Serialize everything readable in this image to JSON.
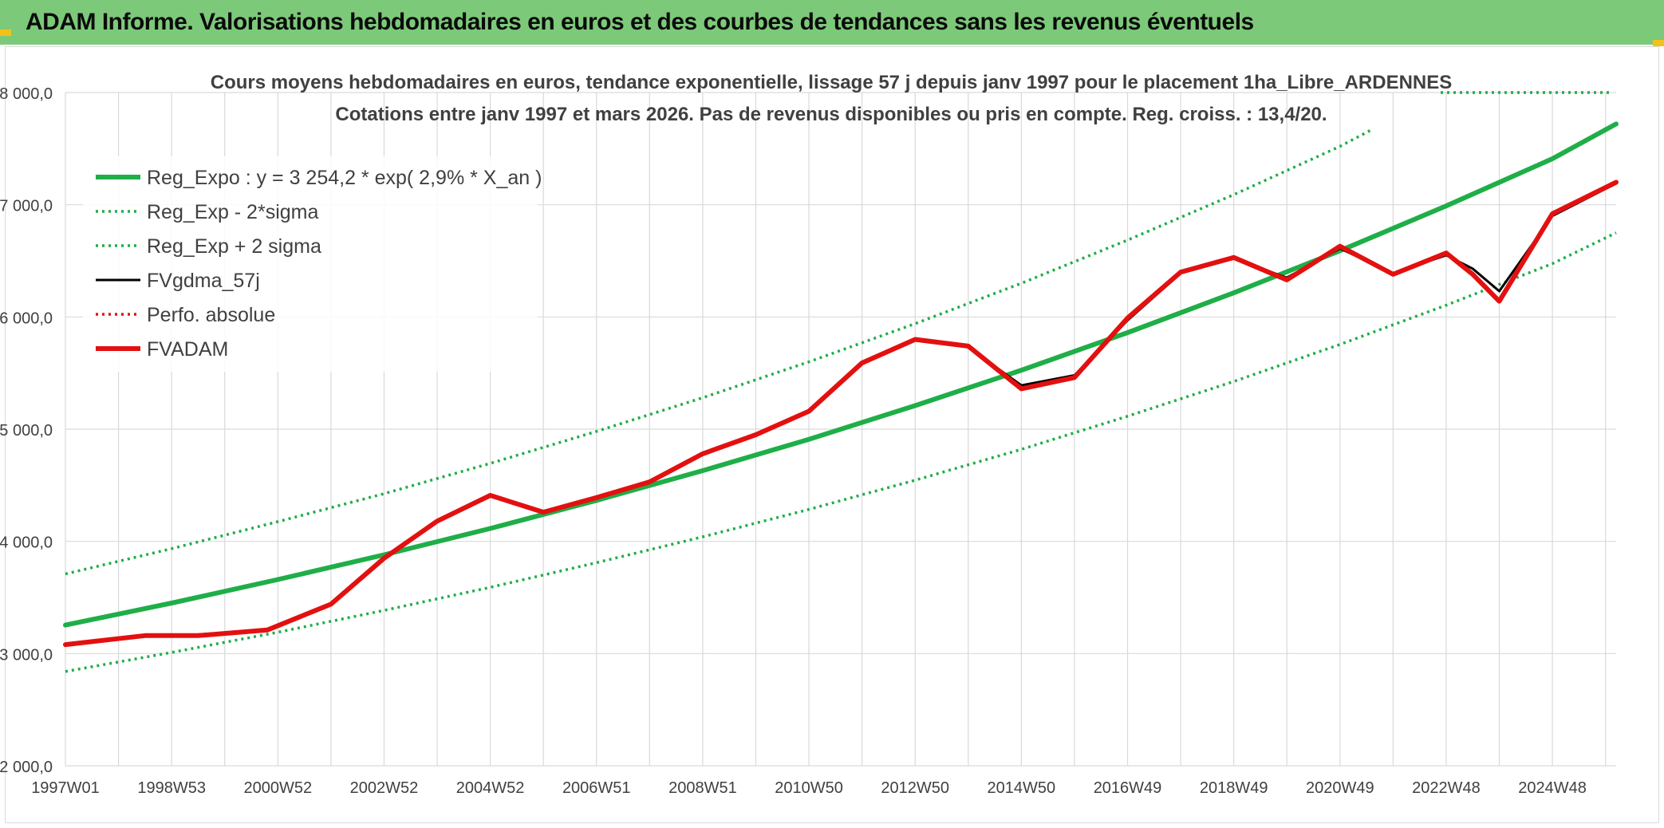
{
  "banner": {
    "title": "ADAM Informe. Valorisations hebdomadaires en euros et des courbes de tendances sans les revenus éventuels"
  },
  "colors": {
    "banner_bg": "#7dc97a",
    "trend": "#1fae48",
    "band": "#1fae48",
    "fvgdma": "#000000",
    "perfo": "#e31010",
    "fvadam": "#e31010",
    "grid": "#d9d9d9",
    "text": "#404040"
  },
  "chart_data": {
    "type": "line",
    "title": "Cours moyens hebdomadaires en euros, tendance exponentielle, lissage 57 j depuis janv 1997 pour le placement 1ha_Libre_ARDENNES",
    "subtitle": "Cotations entre janv 1997 et mars 2026. Pas de revenus disponibles ou pris en compte. Reg. croiss. : 13,4/20.",
    "xlabel": "",
    "ylabel": "",
    "x_range": [
      1997.0,
      2026.2
    ],
    "ylim": [
      2000,
      8000
    ],
    "y_ticks": [
      2000,
      3000,
      4000,
      5000,
      6000,
      7000,
      8000
    ],
    "y_tick_labels": [
      "2 000,0",
      "3 000,0",
      "4 000,0",
      "5 000,0",
      "6 000,0",
      "7 000,0",
      "8 000,0"
    ],
    "x_tick_labels": [
      {
        "label": "1997W01",
        "x": 1997.0
      },
      {
        "label": "1998W53",
        "x": 1999.0
      },
      {
        "label": "2000W52",
        "x": 2001.0
      },
      {
        "label": "2002W52",
        "x": 2003.0
      },
      {
        "label": "2004W52",
        "x": 2005.0
      },
      {
        "label": "2006W51",
        "x": 2007.0
      },
      {
        "label": "2008W51",
        "x": 2009.0
      },
      {
        "label": "2010W50",
        "x": 2011.0
      },
      {
        "label": "2012W50",
        "x": 2013.0
      },
      {
        "label": "2014W50",
        "x": 2015.0
      },
      {
        "label": "2016W49",
        "x": 2017.0
      },
      {
        "label": "2018W49",
        "x": 2019.0
      },
      {
        "label": "2020W49",
        "x": 2021.0
      },
      {
        "label": "2022W48",
        "x": 2023.0
      },
      {
        "label": "2024W48",
        "x": 2025.0
      }
    ],
    "grid": true,
    "legend_position": "top-left",
    "series": [
      {
        "name": "Reg_Expo : y = 3 254,2 * exp( 2,9% * X_an )",
        "style": "solid-thick",
        "color": "#1fae48",
        "x": [
          1997,
          1999,
          2001,
          2003,
          2005,
          2007,
          2009,
          2011,
          2013,
          2015,
          2017,
          2019,
          2021,
          2023,
          2025,
          2026.2
        ],
        "y": [
          3254,
          3450,
          3660,
          3880,
          4115,
          4365,
          4630,
          4910,
          5210,
          5525,
          5860,
          6215,
          6590,
          6990,
          7410,
          7720
        ]
      },
      {
        "name": "Reg_Exp - 2*sigma",
        "style": "dotted",
        "color": "#1fae48",
        "x": [
          1997,
          1999,
          2001,
          2003,
          2005,
          2007,
          2009,
          2011,
          2013,
          2015,
          2017,
          2019,
          2021,
          2023,
          2025,
          2026.2
        ],
        "y": [
          2840,
          3010,
          3190,
          3385,
          3590,
          3810,
          4040,
          4285,
          4545,
          4820,
          5115,
          5425,
          5755,
          6105,
          6475,
          6750
        ]
      },
      {
        "name": "Reg_Exp + 2 sigma",
        "style": "dotted",
        "color": "#1fae48",
        "x": [
          1997,
          1999,
          2001,
          2003,
          2005,
          2007,
          2009,
          2011,
          2013,
          2015,
          2017,
          2019,
          2021,
          2021.6
        ],
        "y": [
          3710,
          3935,
          4175,
          4425,
          4695,
          4980,
          5280,
          5600,
          5940,
          6300,
          6685,
          7090,
          7520,
          7670
        ]
      },
      {
        "name": "FVgdma_57j",
        "style": "solid",
        "color": "#000000",
        "x": [
          1997,
          1998.5,
          1999.5,
          2000.8,
          2002,
          2003,
          2004,
          2005,
          2006,
          2007,
          2008,
          2009,
          2010,
          2011,
          2012,
          2013,
          2014,
          2015,
          2016,
          2017,
          2018,
          2019,
          2020,
          2021,
          2022,
          2023,
          2023.5,
          2024,
          2025,
          2026.2
        ],
        "y": [
          3080,
          3160,
          3170,
          3210,
          3440,
          3840,
          4190,
          4400,
          4270,
          4390,
          4540,
          4790,
          4960,
          5150,
          5600,
          5790,
          5730,
          5390,
          5480,
          5970,
          6390,
          6520,
          6350,
          6610,
          6390,
          6550,
          6430,
          6230,
          6900,
          7190
        ]
      },
      {
        "name": "Perfo. absolue",
        "style": "dotted",
        "color": "#e31010",
        "x": [],
        "y": []
      },
      {
        "name": "FVADAM",
        "style": "solid-thick",
        "color": "#e31010",
        "x": [
          1997,
          1998.5,
          1999.5,
          2000.8,
          2002,
          2003,
          2004,
          2005,
          2006,
          2007,
          2008,
          2009,
          2010,
          2011,
          2012,
          2013,
          2014,
          2015,
          2016,
          2017,
          2018,
          2019,
          2020,
          2021,
          2022,
          2023,
          2023.5,
          2024,
          2025,
          2026.2
        ],
        "y": [
          3080,
          3160,
          3160,
          3210,
          3440,
          3850,
          4180,
          4410,
          4260,
          4390,
          4530,
          4780,
          4950,
          5160,
          5590,
          5800,
          5740,
          5360,
          5460,
          5990,
          6400,
          6530,
          6330,
          6630,
          6380,
          6570,
          6380,
          6140,
          6920,
          7200
        ]
      }
    ]
  }
}
